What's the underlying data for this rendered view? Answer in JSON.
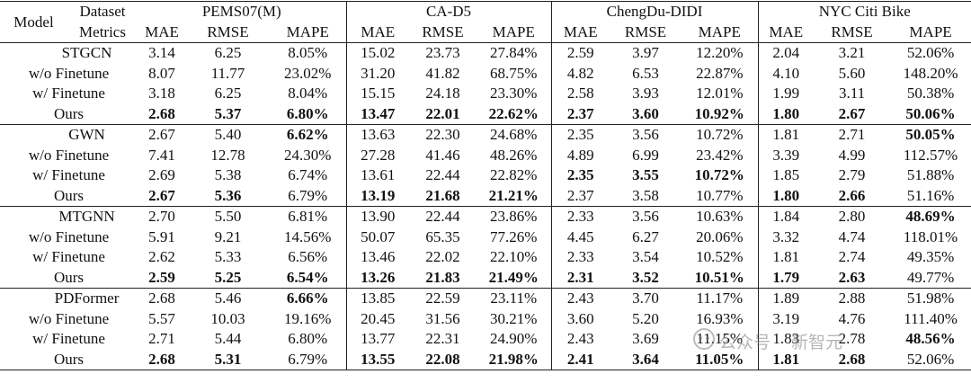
{
  "header": {
    "model": "Model",
    "dataset": "Dataset",
    "metrics": "Metrics",
    "datasets": [
      "PEMS07(M)",
      "CA-D5",
      "ChengDu-DIDI",
      "NYC Citi Bike"
    ],
    "metric_names": [
      "MAE",
      "RMSE",
      "MAPE"
    ]
  },
  "groups": [
    {
      "rows": [
        {
          "label": "STGCN",
          "cells": [
            "3.14",
            "6.25",
            "8.05%",
            "15.02",
            "23.73",
            "27.84%",
            "2.59",
            "3.97",
            "12.20%",
            "2.04",
            "3.21",
            "52.06%"
          ],
          "bold": []
        },
        {
          "label": "w/o Finetune",
          "cells": [
            "8.07",
            "11.77",
            "23.02%",
            "31.20",
            "41.82",
            "68.75%",
            "4.82",
            "6.53",
            "22.87%",
            "4.10",
            "5.60",
            "148.20%"
          ],
          "bold": []
        },
        {
          "label": "w/ Finetune",
          "cells": [
            "3.18",
            "6.25",
            "8.04%",
            "15.15",
            "24.18",
            "23.30%",
            "2.58",
            "3.93",
            "12.01%",
            "1.99",
            "3.11",
            "50.38%"
          ],
          "bold": []
        },
        {
          "label": "Ours",
          "cells": [
            "2.68",
            "5.37",
            "6.80%",
            "13.47",
            "22.01",
            "22.62%",
            "2.37",
            "3.60",
            "10.92%",
            "1.80",
            "2.67",
            "50.06%"
          ],
          "bold": [
            0,
            1,
            2,
            3,
            4,
            5,
            6,
            7,
            8,
            9,
            10,
            11
          ]
        }
      ]
    },
    {
      "rows": [
        {
          "label": "GWN",
          "cells": [
            "2.67",
            "5.40",
            "6.62%",
            "13.63",
            "22.30",
            "24.68%",
            "2.35",
            "3.56",
            "10.72%",
            "1.81",
            "2.71",
            "50.05%"
          ],
          "bold": [
            2,
            11
          ]
        },
        {
          "label": "w/o Finetune",
          "cells": [
            "7.41",
            "12.78",
            "24.30%",
            "27.28",
            "41.46",
            "48.26%",
            "4.89",
            "6.99",
            "23.42%",
            "3.39",
            "4.99",
            "112.57%"
          ],
          "bold": []
        },
        {
          "label": "w/ Finetune",
          "cells": [
            "2.69",
            "5.38",
            "6.74%",
            "13.61",
            "22.44",
            "22.82%",
            "2.35",
            "3.55",
            "10.72%",
            "1.85",
            "2.79",
            "51.88%"
          ],
          "bold": [
            6,
            7,
            8
          ]
        },
        {
          "label": "Ours",
          "cells": [
            "2.67",
            "5.36",
            "6.79%",
            "13.19",
            "21.68",
            "21.21%",
            "2.37",
            "3.58",
            "10.77%",
            "1.80",
            "2.66",
            "51.16%"
          ],
          "bold": [
            0,
            1,
            3,
            4,
            5,
            9,
            10
          ]
        }
      ]
    },
    {
      "rows": [
        {
          "label": "MTGNN",
          "cells": [
            "2.70",
            "5.50",
            "6.81%",
            "13.90",
            "22.44",
            "23.86%",
            "2.33",
            "3.56",
            "10.63%",
            "1.84",
            "2.80",
            "48.69%"
          ],
          "bold": [
            11
          ]
        },
        {
          "label": "w/o Finetune",
          "cells": [
            "5.91",
            "9.21",
            "14.56%",
            "50.07",
            "65.35",
            "77.26%",
            "4.45",
            "6.27",
            "20.06%",
            "3.32",
            "4.74",
            "118.01%"
          ],
          "bold": []
        },
        {
          "label": "w/ Finetune",
          "cells": [
            "2.62",
            "5.33",
            "6.56%",
            "13.46",
            "22.02",
            "22.10%",
            "2.33",
            "3.54",
            "10.52%",
            "1.81",
            "2.74",
            "49.35%"
          ],
          "bold": []
        },
        {
          "label": "Ours",
          "cells": [
            "2.59",
            "5.25",
            "6.54%",
            "13.26",
            "21.83",
            "21.49%",
            "2.31",
            "3.52",
            "10.51%",
            "1.79",
            "2.63",
            "49.77%"
          ],
          "bold": [
            0,
            1,
            2,
            3,
            4,
            5,
            6,
            7,
            8,
            9,
            10
          ]
        }
      ]
    },
    {
      "rows": [
        {
          "label": "PDFormer",
          "cells": [
            "2.68",
            "5.46",
            "6.66%",
            "13.85",
            "22.59",
            "23.11%",
            "2.43",
            "3.70",
            "11.17%",
            "1.89",
            "2.88",
            "51.98%"
          ],
          "bold": [
            2
          ]
        },
        {
          "label": "w/o Finetune",
          "cells": [
            "5.57",
            "10.03",
            "19.16%",
            "20.45",
            "31.56",
            "30.21%",
            "3.60",
            "5.20",
            "16.93%",
            "3.19",
            "4.76",
            "111.40%"
          ],
          "bold": []
        },
        {
          "label": "w/ Finetune",
          "cells": [
            "2.71",
            "5.44",
            "6.80%",
            "13.77",
            "22.31",
            "24.90%",
            "2.43",
            "3.69",
            "11.15%",
            "1.83",
            "2.78",
            "48.56%"
          ],
          "bold": [
            11
          ]
        },
        {
          "label": "Ours",
          "cells": [
            "2.68",
            "5.31",
            "6.79%",
            "13.55",
            "22.08",
            "21.98%",
            "2.41",
            "3.64",
            "11.05%",
            "1.81",
            "2.68",
            "52.06%"
          ],
          "bold": [
            0,
            1,
            3,
            4,
            5,
            6,
            7,
            8,
            9,
            10
          ]
        }
      ]
    }
  ],
  "watermark": {
    "left": "公众号",
    "right": "新智元"
  }
}
